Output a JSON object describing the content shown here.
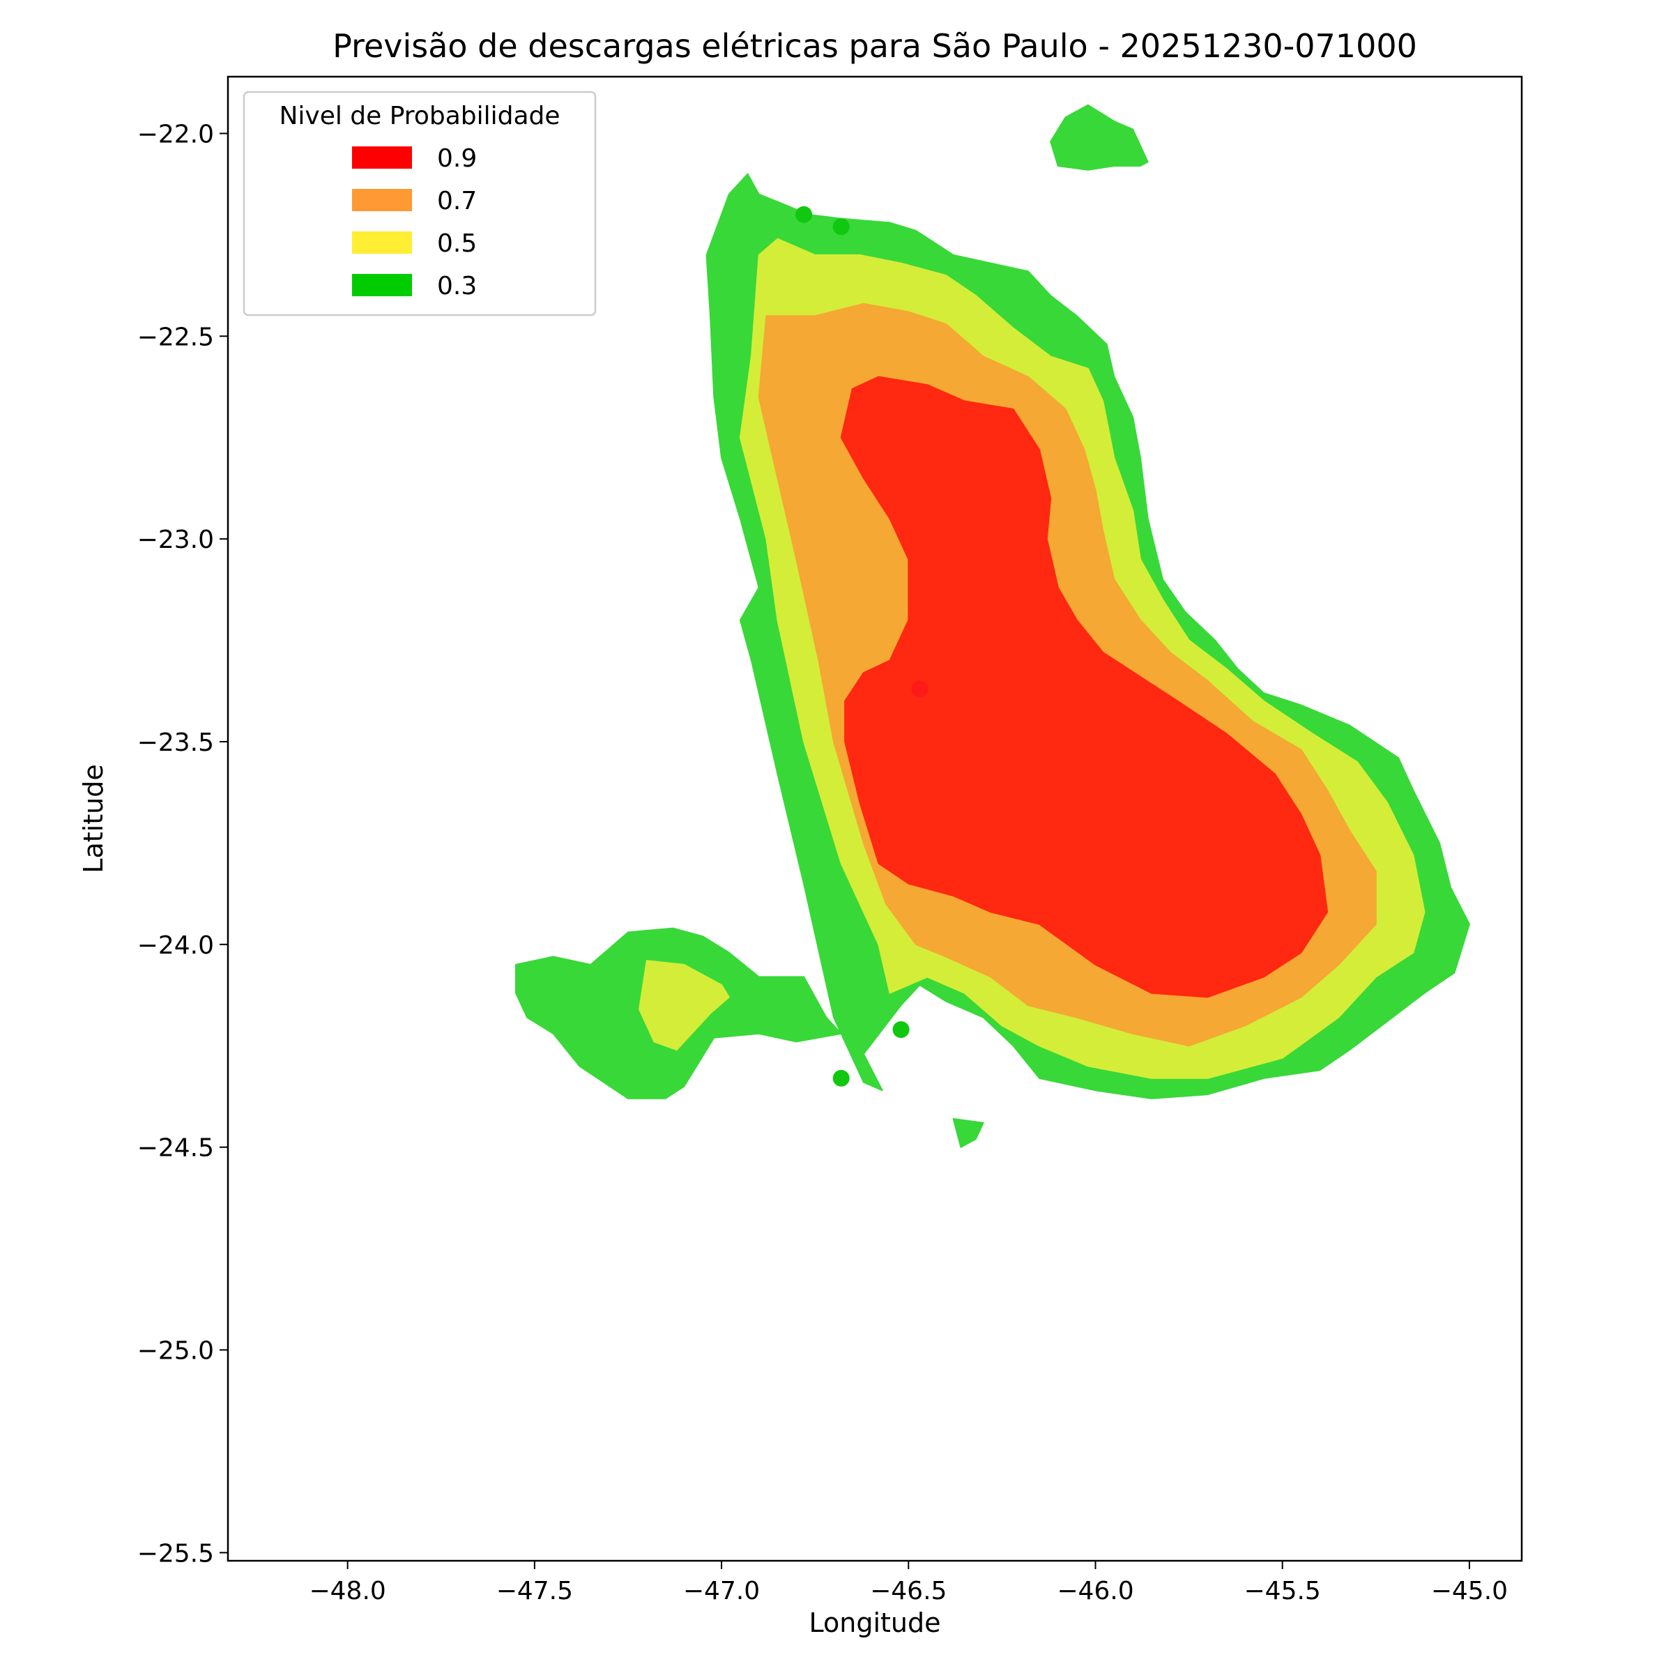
{
  "chart_data": {
    "type": "contour",
    "title": "Previsão de descargas elétricas para São Paulo - 20251230-071000",
    "xlabel": "Longitude",
    "ylabel": "Latitude",
    "xlim": [
      -48.32,
      -44.86
    ],
    "ylim": [
      -25.52,
      -21.86
    ],
    "xticks": [
      -48.0,
      -47.5,
      -47.0,
      -46.5,
      -46.0,
      -45.5,
      -45.0
    ],
    "xtick_labels": [
      "−48.0",
      "−47.5",
      "−47.0",
      "−46.5",
      "−46.0",
      "−45.5",
      "−45.0"
    ],
    "yticks": [
      -22.0,
      -22.5,
      -23.0,
      -23.5,
      -24.0,
      -24.5,
      -25.0,
      -25.5
    ],
    "ytick_labels": [
      "−22.0",
      "−22.5",
      "−23.0",
      "−23.5",
      "−24.0",
      "−24.5",
      "−25.0",
      "−25.5"
    ],
    "grid": false,
    "legend": {
      "title": "Nivel de Probabilidade",
      "placement": "top-left",
      "entries": [
        {
          "label": "0.9",
          "color": "#ff0000"
        },
        {
          "label": "0.7",
          "color": "#ff9933"
        },
        {
          "label": "0.5",
          "color": "#ffee33"
        },
        {
          "label": "0.3",
          "color": "#00cc00"
        }
      ]
    },
    "fill_colors": {
      "0.3": "#38d838",
      "0.5": "#d4ed38",
      "0.7": "#f5a833",
      "0.9": "#ff2810"
    },
    "regions": [
      {
        "level": "0.3",
        "name": "main-region",
        "points": [
          [
            -46.93,
            -22.1
          ],
          [
            -46.9,
            -22.15
          ],
          [
            -46.82,
            -22.18
          ],
          [
            -46.77,
            -22.2
          ],
          [
            -46.68,
            -22.21
          ],
          [
            -46.55,
            -22.22
          ],
          [
            -46.48,
            -22.24
          ],
          [
            -46.38,
            -22.3
          ],
          [
            -46.28,
            -22.32
          ],
          [
            -46.18,
            -22.34
          ],
          [
            -46.12,
            -22.4
          ],
          [
            -46.05,
            -22.45
          ],
          [
            -45.97,
            -22.52
          ],
          [
            -45.95,
            -22.6
          ],
          [
            -45.9,
            -22.7
          ],
          [
            -45.88,
            -22.8
          ],
          [
            -45.86,
            -22.95
          ],
          [
            -45.82,
            -23.1
          ],
          [
            -45.76,
            -23.18
          ],
          [
            -45.68,
            -23.25
          ],
          [
            -45.62,
            -23.32
          ],
          [
            -45.55,
            -23.38
          ],
          [
            -45.45,
            -23.41
          ],
          [
            -45.32,
            -23.46
          ],
          [
            -45.19,
            -23.54
          ],
          [
            -45.15,
            -23.62
          ],
          [
            -45.08,
            -23.75
          ],
          [
            -45.05,
            -23.86
          ],
          [
            -45.0,
            -23.95
          ],
          [
            -45.04,
            -24.07
          ],
          [
            -45.12,
            -24.12
          ],
          [
            -45.22,
            -24.19
          ],
          [
            -45.32,
            -24.26
          ],
          [
            -45.4,
            -24.31
          ],
          [
            -45.55,
            -24.33
          ],
          [
            -45.7,
            -24.37
          ],
          [
            -45.85,
            -24.38
          ],
          [
            -46.0,
            -24.36
          ],
          [
            -46.15,
            -24.33
          ],
          [
            -46.22,
            -24.25
          ],
          [
            -46.3,
            -24.18
          ],
          [
            -46.4,
            -24.14
          ],
          [
            -46.47,
            -24.1
          ],
          [
            -46.52,
            -24.15
          ],
          [
            -46.62,
            -24.27
          ],
          [
            -46.57,
            -24.36
          ],
          [
            -46.62,
            -24.34
          ],
          [
            -46.7,
            -24.18
          ],
          [
            -46.78,
            -23.85
          ],
          [
            -46.85,
            -23.58
          ],
          [
            -46.92,
            -23.3
          ],
          [
            -46.95,
            -23.2
          ],
          [
            -46.9,
            -23.12
          ],
          [
            -46.95,
            -22.95
          ],
          [
            -47.0,
            -22.8
          ],
          [
            -47.02,
            -22.65
          ],
          [
            -47.03,
            -22.45
          ],
          [
            -47.04,
            -22.3
          ],
          [
            -46.98,
            -22.15
          ]
        ]
      },
      {
        "level": "0.3",
        "name": "west-region",
        "points": [
          [
            -47.55,
            -24.05
          ],
          [
            -47.45,
            -24.03
          ],
          [
            -47.35,
            -24.05
          ],
          [
            -47.25,
            -23.97
          ],
          [
            -47.13,
            -23.96
          ],
          [
            -47.05,
            -23.98
          ],
          [
            -46.98,
            -24.02
          ],
          [
            -46.9,
            -24.08
          ],
          [
            -46.78,
            -24.08
          ],
          [
            -46.72,
            -24.18
          ],
          [
            -46.68,
            -24.22
          ],
          [
            -46.8,
            -24.24
          ],
          [
            -46.9,
            -24.22
          ],
          [
            -47.02,
            -24.23
          ],
          [
            -47.1,
            -24.35
          ],
          [
            -47.15,
            -24.38
          ],
          [
            -47.25,
            -24.38
          ],
          [
            -47.38,
            -24.3
          ],
          [
            -47.45,
            -24.22
          ],
          [
            -47.52,
            -24.18
          ],
          [
            -47.55,
            -24.12
          ]
        ]
      },
      {
        "level": "0.3",
        "name": "north-island",
        "points": [
          [
            -46.08,
            -21.96
          ],
          [
            -46.02,
            -21.93
          ],
          [
            -45.95,
            -21.97
          ],
          [
            -45.9,
            -21.99
          ],
          [
            -45.86,
            -22.07
          ],
          [
            -45.88,
            -22.08
          ],
          [
            -45.95,
            -22.08
          ],
          [
            -46.02,
            -22.09
          ],
          [
            -46.1,
            -22.08
          ],
          [
            -46.12,
            -22.02
          ]
        ]
      },
      {
        "level": "0.3",
        "name": "south-island",
        "points": [
          [
            -46.38,
            -24.43
          ],
          [
            -46.3,
            -24.44
          ],
          [
            -46.32,
            -24.48
          ],
          [
            -46.36,
            -24.5
          ]
        ]
      },
      {
        "level": "0.5",
        "name": "main-region",
        "points": [
          [
            -46.9,
            -22.3
          ],
          [
            -46.85,
            -22.26
          ],
          [
            -46.75,
            -22.3
          ],
          [
            -46.63,
            -22.3
          ],
          [
            -46.52,
            -22.32
          ],
          [
            -46.4,
            -22.35
          ],
          [
            -46.32,
            -22.4
          ],
          [
            -46.22,
            -22.48
          ],
          [
            -46.12,
            -22.55
          ],
          [
            -46.02,
            -22.58
          ],
          [
            -45.98,
            -22.66
          ],
          [
            -45.95,
            -22.8
          ],
          [
            -45.9,
            -22.93
          ],
          [
            -45.88,
            -23.05
          ],
          [
            -45.82,
            -23.15
          ],
          [
            -45.75,
            -23.25
          ],
          [
            -45.65,
            -23.32
          ],
          [
            -45.55,
            -23.4
          ],
          [
            -45.42,
            -23.48
          ],
          [
            -45.3,
            -23.55
          ],
          [
            -45.22,
            -23.65
          ],
          [
            -45.15,
            -23.78
          ],
          [
            -45.12,
            -23.92
          ],
          [
            -45.15,
            -24.02
          ],
          [
            -45.25,
            -24.08
          ],
          [
            -45.35,
            -24.18
          ],
          [
            -45.5,
            -24.28
          ],
          [
            -45.7,
            -24.33
          ],
          [
            -45.85,
            -24.33
          ],
          [
            -46.02,
            -24.3
          ],
          [
            -46.15,
            -24.25
          ],
          [
            -46.25,
            -24.2
          ],
          [
            -46.35,
            -24.12
          ],
          [
            -46.45,
            -24.08
          ],
          [
            -46.55,
            -24.12
          ],
          [
            -46.58,
            -24.0
          ],
          [
            -46.68,
            -23.8
          ],
          [
            -46.78,
            -23.5
          ],
          [
            -46.85,
            -23.2
          ],
          [
            -46.88,
            -23.0
          ],
          [
            -46.95,
            -22.75
          ],
          [
            -46.92,
            -22.55
          ]
        ]
      },
      {
        "level": "0.5",
        "name": "west-region",
        "points": [
          [
            -47.2,
            -24.04
          ],
          [
            -47.1,
            -24.05
          ],
          [
            -47.0,
            -24.1
          ],
          [
            -46.98,
            -24.13
          ],
          [
            -47.03,
            -24.17
          ],
          [
            -47.08,
            -24.22
          ],
          [
            -47.12,
            -24.26
          ],
          [
            -47.18,
            -24.24
          ],
          [
            -47.22,
            -24.16
          ]
        ]
      },
      {
        "level": "0.7",
        "name": "main-region",
        "points": [
          [
            -46.88,
            -22.45
          ],
          [
            -46.75,
            -22.45
          ],
          [
            -46.62,
            -22.42
          ],
          [
            -46.5,
            -22.44
          ],
          [
            -46.4,
            -22.47
          ],
          [
            -46.3,
            -22.55
          ],
          [
            -46.18,
            -22.6
          ],
          [
            -46.08,
            -22.68
          ],
          [
            -46.03,
            -22.78
          ],
          [
            -46.0,
            -22.88
          ],
          [
            -45.98,
            -22.98
          ],
          [
            -45.95,
            -23.1
          ],
          [
            -45.88,
            -23.2
          ],
          [
            -45.8,
            -23.28
          ],
          [
            -45.7,
            -23.35
          ],
          [
            -45.58,
            -23.45
          ],
          [
            -45.45,
            -23.52
          ],
          [
            -45.38,
            -23.62
          ],
          [
            -45.32,
            -23.72
          ],
          [
            -45.25,
            -23.82
          ],
          [
            -45.25,
            -23.95
          ],
          [
            -45.35,
            -24.05
          ],
          [
            -45.45,
            -24.13
          ],
          [
            -45.6,
            -24.2
          ],
          [
            -45.75,
            -24.25
          ],
          [
            -45.9,
            -24.22
          ],
          [
            -46.05,
            -24.18
          ],
          [
            -46.18,
            -24.15
          ],
          [
            -46.28,
            -24.08
          ],
          [
            -46.4,
            -24.03
          ],
          [
            -46.48,
            -24.0
          ],
          [
            -46.56,
            -23.9
          ],
          [
            -46.62,
            -23.75
          ],
          [
            -46.7,
            -23.5
          ],
          [
            -46.74,
            -23.3
          ],
          [
            -46.8,
            -23.05
          ],
          [
            -46.85,
            -22.85
          ],
          [
            -46.9,
            -22.65
          ]
        ]
      },
      {
        "level": "0.9",
        "name": "main-region",
        "points": [
          [
            -46.65,
            -22.63
          ],
          [
            -46.58,
            -22.6
          ],
          [
            -46.45,
            -22.62
          ],
          [
            -46.35,
            -22.66
          ],
          [
            -46.22,
            -22.68
          ],
          [
            -46.15,
            -22.78
          ],
          [
            -46.12,
            -22.9
          ],
          [
            -46.13,
            -23.0
          ],
          [
            -46.1,
            -23.12
          ],
          [
            -46.05,
            -23.2
          ],
          [
            -45.98,
            -23.28
          ],
          [
            -45.88,
            -23.34
          ],
          [
            -45.78,
            -23.4
          ],
          [
            -45.65,
            -23.48
          ],
          [
            -45.52,
            -23.58
          ],
          [
            -45.45,
            -23.68
          ],
          [
            -45.4,
            -23.78
          ],
          [
            -45.38,
            -23.92
          ],
          [
            -45.45,
            -24.02
          ],
          [
            -45.55,
            -24.08
          ],
          [
            -45.7,
            -24.13
          ],
          [
            -45.85,
            -24.12
          ],
          [
            -46.0,
            -24.05
          ],
          [
            -46.15,
            -23.95
          ],
          [
            -46.28,
            -23.92
          ],
          [
            -46.38,
            -23.88
          ],
          [
            -46.5,
            -23.85
          ],
          [
            -46.58,
            -23.8
          ],
          [
            -46.63,
            -23.65
          ],
          [
            -46.67,
            -23.5
          ],
          [
            -46.67,
            -23.4
          ],
          [
            -46.62,
            -23.33
          ],
          [
            -46.55,
            -23.3
          ],
          [
            -46.5,
            -23.2
          ],
          [
            -46.5,
            -23.05
          ],
          [
            -46.55,
            -22.95
          ],
          [
            -46.62,
            -22.85
          ],
          [
            -46.68,
            -22.75
          ]
        ]
      }
    ],
    "scatter": [
      {
        "lon": -46.78,
        "lat": -22.2,
        "level": "0.3"
      },
      {
        "lon": -46.68,
        "lat": -22.23,
        "level": "0.3"
      },
      {
        "lon": -46.47,
        "lat": -23.37,
        "level": "0.9"
      },
      {
        "lon": -46.52,
        "lat": -24.21,
        "level": "0.3"
      },
      {
        "lon": -46.68,
        "lat": -24.33,
        "level": "0.3"
      }
    ],
    "scatter_colors": {
      "0.3": "#10c810",
      "0.9": "#ff1a1a"
    }
  }
}
